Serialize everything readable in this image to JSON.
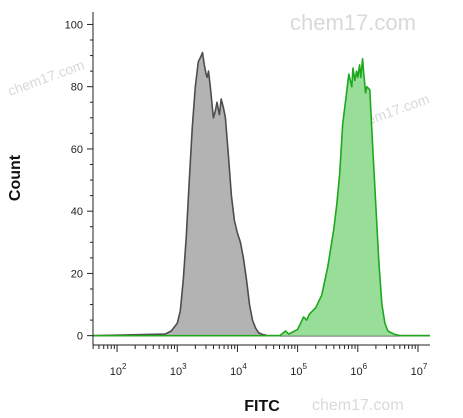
{
  "chart_data": {
    "type": "area",
    "xlabel": "FITC",
    "ylabel": "Count",
    "xscale": "log",
    "xlim_exponents": [
      1.6,
      7.2
    ],
    "ylim": [
      -3,
      104
    ],
    "y_ticks": [
      "0",
      "20",
      "40",
      "60",
      "80",
      "100"
    ],
    "x_ticks": [
      {
        "base": "10",
        "exp": "2"
      },
      {
        "base": "10",
        "exp": "3"
      },
      {
        "base": "10",
        "exp": "4"
      },
      {
        "base": "10",
        "exp": "5"
      },
      {
        "base": "10",
        "exp": "6"
      },
      {
        "base": "10",
        "exp": "7"
      }
    ],
    "series": [
      {
        "fill": "#b3b3b3",
        "stroke": "#4d4d4d",
        "x_log10": [
          1.6,
          2.8,
          2.9,
          3.0,
          3.05,
          3.1,
          3.15,
          3.2,
          3.25,
          3.3,
          3.35,
          3.4,
          3.42,
          3.45,
          3.48,
          3.5,
          3.52,
          3.55,
          3.6,
          3.63,
          3.66,
          3.7,
          3.73,
          3.77,
          3.8,
          3.85,
          3.9,
          3.95,
          4.0,
          4.05,
          4.1,
          4.15,
          4.2,
          4.25,
          4.3,
          4.35,
          4.4,
          4.5,
          7.2
        ],
        "y": [
          0,
          0.5,
          1.5,
          4,
          8,
          18,
          32,
          50,
          67,
          80,
          88,
          90,
          91,
          87,
          84,
          83,
          85,
          80,
          70,
          72,
          75,
          71,
          76,
          73,
          70,
          58,
          45,
          37,
          33,
          30,
          25,
          18,
          10,
          5,
          2.5,
          1,
          0.5,
          0,
          0
        ]
      },
      {
        "fill": "#98dd98",
        "stroke": "#1ea81e",
        "x_log10": [
          1.6,
          4.7,
          4.8,
          4.85,
          4.9,
          5.0,
          5.05,
          5.1,
          5.15,
          5.2,
          5.3,
          5.4,
          5.5,
          5.6,
          5.65,
          5.7,
          5.75,
          5.8,
          5.85,
          5.9,
          5.92,
          5.95,
          5.98,
          6.0,
          6.03,
          6.05,
          6.08,
          6.1,
          6.13,
          6.15,
          6.2,
          6.25,
          6.3,
          6.35,
          6.4,
          6.45,
          6.5,
          6.6,
          6.7,
          7.2
        ],
        "y": [
          0,
          0,
          1.5,
          0.5,
          1,
          2,
          4,
          6,
          5,
          7,
          9,
          13,
          22,
          34,
          42,
          52,
          68,
          76,
          84,
          80,
          86,
          82,
          85,
          83,
          87,
          83,
          89,
          84,
          78,
          80,
          79,
          60,
          42,
          24,
          10,
          4,
          1.5,
          0.5,
          0,
          0
        ]
      }
    ]
  },
  "watermarks": [
    "chem17.com",
    "chem17.com",
    "chem17.com",
    "chem17.com"
  ]
}
